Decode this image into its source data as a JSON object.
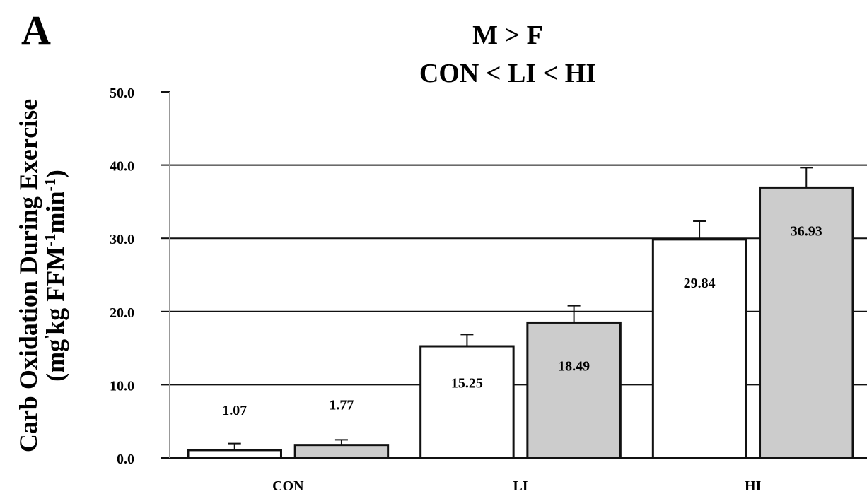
{
  "panel_label": "A",
  "chart_data": {
    "type": "bar",
    "title": "M > F",
    "subtitle": "CON < LI < HI",
    "ylabel_line1": "Carb Oxidation During Exercise",
    "ylabel_line2_parts": [
      "(mg",
      "'",
      "kg FFM",
      "-1",
      "min",
      "-1",
      ")"
    ],
    "categories": [
      "CON",
      "LI",
      "HI"
    ],
    "series": [
      {
        "values": [
          1.07,
          15.25,
          29.84
        ],
        "errors": [
          0.9,
          1.6,
          2.5
        ],
        "color": "#ffffff",
        "value_labels": [
          "1.07",
          "15.25",
          "29.84"
        ]
      },
      {
        "values": [
          1.77,
          18.49,
          36.93
        ],
        "errors": [
          0.7,
          2.3,
          2.7
        ],
        "color": "#cccccc",
        "value_labels": [
          "1.77",
          "18.49",
          "36.93"
        ]
      }
    ],
    "ylim": [
      0,
      50
    ],
    "yticks": [
      0,
      10,
      20,
      30,
      40,
      50
    ],
    "ytick_labels": [
      "0.0",
      "10.0",
      "20.0",
      "30.0",
      "40.0",
      "50.0"
    ],
    "grid": true,
    "legend": "none"
  }
}
